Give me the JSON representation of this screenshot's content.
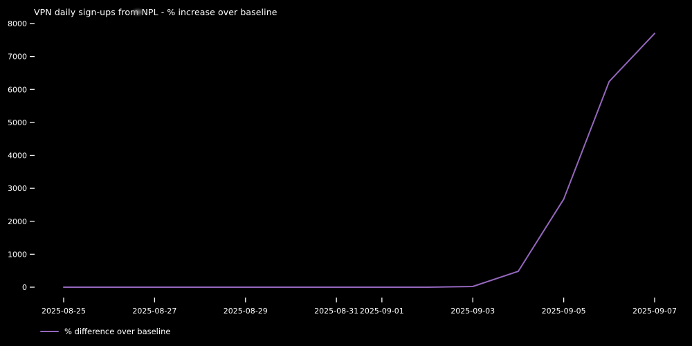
{
  "chart_data": {
    "type": "line",
    "title": "VPN daily sign-ups from NPL - % increase over baseline",
    "x": [
      "2025-08-25",
      "2025-08-26",
      "2025-08-27",
      "2025-08-28",
      "2025-08-29",
      "2025-08-30",
      "2025-08-31",
      "2025-09-01",
      "2025-09-02",
      "2025-09-03",
      "2025-09-04",
      "2025-09-05",
      "2025-09-06",
      "2025-09-07"
    ],
    "series": [
      {
        "name": "% difference over baseline",
        "values": [
          0,
          0,
          0,
          0,
          0,
          0,
          0,
          0,
          0,
          20,
          480,
          2670,
          6240,
          7700
        ],
        "color": "#9467bd"
      }
    ],
    "xlabel": "",
    "ylabel": "",
    "ylim": [
      0,
      8000
    ],
    "yticks": [
      0,
      1000,
      2000,
      3000,
      4000,
      5000,
      6000,
      7000,
      8000
    ],
    "xticks": [
      {
        "label": "2025-08-25",
        "day_index": 0
      },
      {
        "label": "2025-08-27",
        "day_index": 2
      },
      {
        "label": "2025-08-29",
        "day_index": 4
      },
      {
        "label": "2025-08-31",
        "day_index": 6
      },
      {
        "label": "2025-09-01",
        "day_index": 7
      },
      {
        "label": "2025-09-03",
        "day_index": 9
      },
      {
        "label": "2025-09-05",
        "day_index": 11
      },
      {
        "label": "2025-09-07",
        "day_index": 13
      }
    ],
    "grid": false,
    "legend_position": "bottom-left",
    "background_color": "#000000",
    "text_color": "#ffffff"
  },
  "legend": {
    "label": "% difference over baseline"
  }
}
